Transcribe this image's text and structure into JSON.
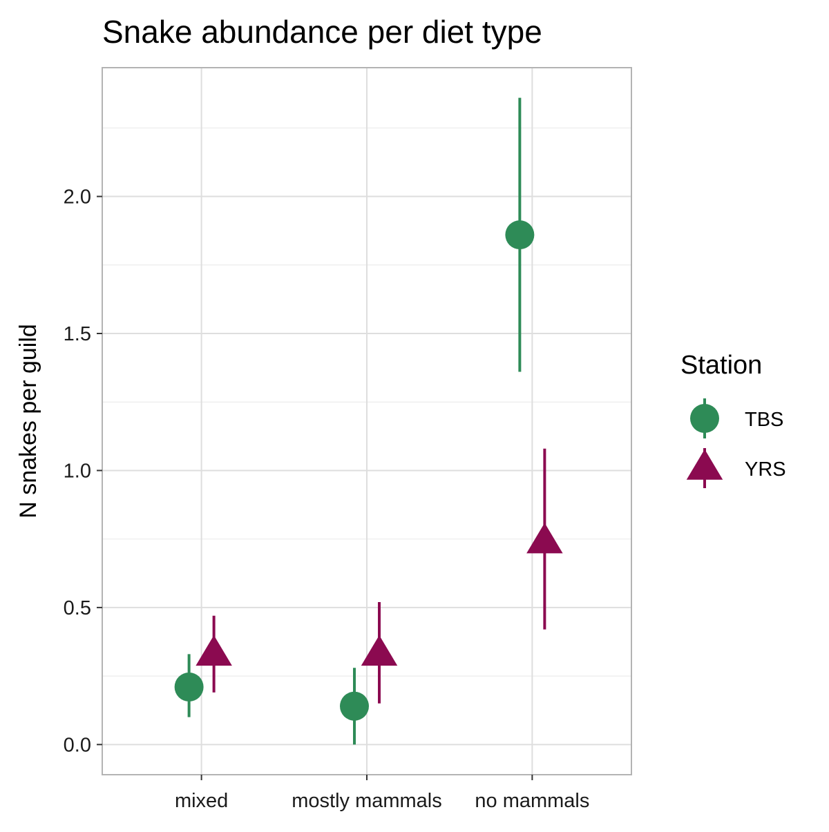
{
  "chart_data": {
    "type": "scatter",
    "title": "Snake abundance per diet type",
    "xlabel": "",
    "ylabel": "N snakes per guild",
    "categories": [
      "mixed",
      "mostly mammals",
      "no mammals"
    ],
    "ylim": [
      -0.11,
      2.47
    ],
    "yticks": [
      0.0,
      0.5,
      1.0,
      1.5,
      2.0
    ],
    "ytick_labels": [
      "0.0",
      "0.5",
      "1.0",
      "1.5",
      "2.0"
    ],
    "grid": true,
    "legend": {
      "title": "Station",
      "position": "right"
    },
    "series": [
      {
        "name": "TBS",
        "marker": "circle",
        "color": "#2e8b57",
        "points": [
          {
            "category": "mixed",
            "value": 0.21,
            "low": 0.1,
            "high": 0.33
          },
          {
            "category": "mostly mammals",
            "value": 0.14,
            "low": 0.0,
            "high": 0.28
          },
          {
            "category": "no mammals",
            "value": 1.86,
            "low": 1.36,
            "high": 2.36
          }
        ]
      },
      {
        "name": "YRS",
        "marker": "triangle",
        "color": "#8b0a50",
        "points": [
          {
            "category": "mixed",
            "value": 0.33,
            "low": 0.19,
            "high": 0.47
          },
          {
            "category": "mostly mammals",
            "value": 0.33,
            "low": 0.15,
            "high": 0.52
          },
          {
            "category": "no mammals",
            "value": 0.74,
            "low": 0.42,
            "high": 1.08
          }
        ]
      }
    ]
  }
}
